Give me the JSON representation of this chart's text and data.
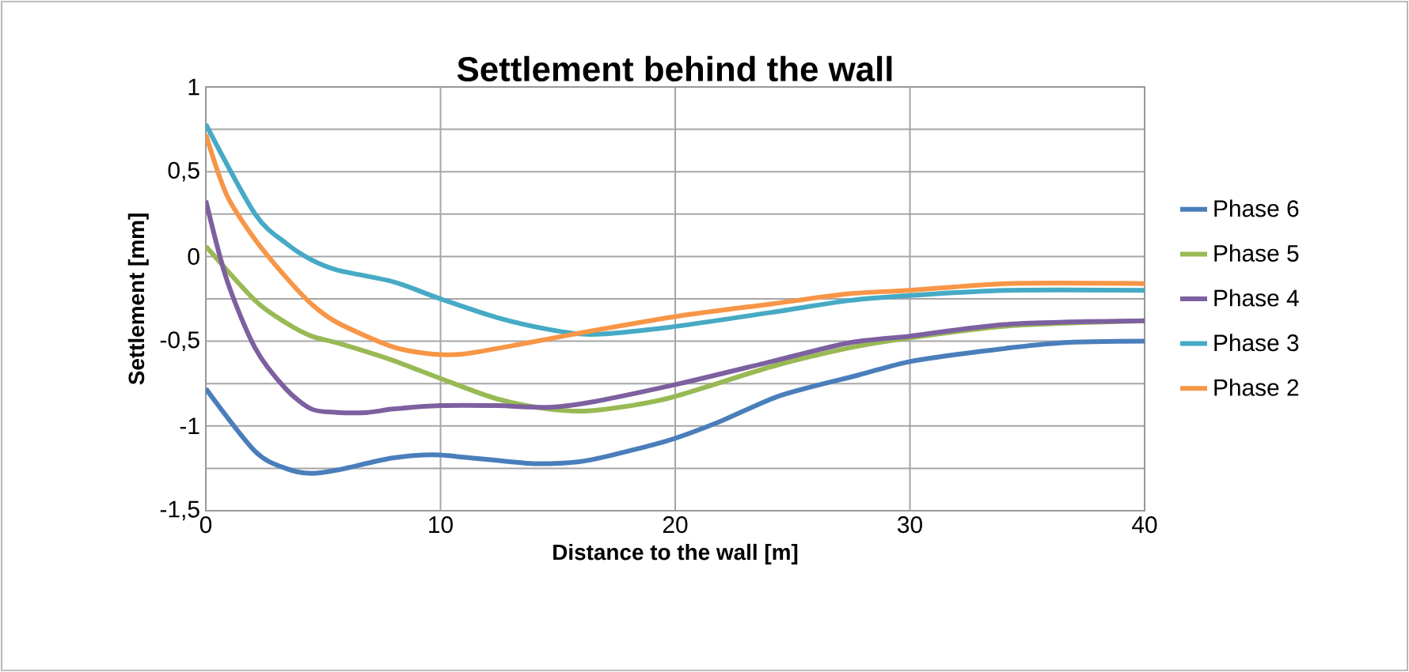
{
  "chart_data": {
    "type": "line",
    "title": "Settlement behind the wall",
    "xlabel": "Distance to the wall [m]",
    "ylabel": "Settlement [mm]",
    "xlim": [
      0,
      40
    ],
    "xticks": [
      0,
      10,
      20,
      30,
      40
    ],
    "ylim": [
      -1.5,
      1
    ],
    "yticks": [
      {
        "value": -1.5,
        "label": "-1,5"
      },
      {
        "value": -1.25,
        "label": null
      },
      {
        "value": -1,
        "label": "-1"
      },
      {
        "value": -0.75,
        "label": null
      },
      {
        "value": -0.5,
        "label": "-0,5"
      },
      {
        "value": -0.25,
        "label": null
      },
      {
        "value": 0,
        "label": "0"
      },
      {
        "value": 0.25,
        "label": null
      },
      {
        "value": 0.5,
        "label": "0,5"
      },
      {
        "value": 0.75,
        "label": null
      },
      {
        "value": 1,
        "label": "1"
      }
    ],
    "grid": true,
    "legend": "right",
    "marker": "none",
    "line_style": "solid",
    "series": [
      {
        "name": "Phase 6",
        "color": "#4a7ebb",
        "x": [
          0,
          2.1,
          3.4,
          4.5,
          5.6,
          7.9,
          9.6,
          10.7,
          13.7,
          15,
          16.4,
          19.6,
          21.8,
          24.5,
          27.8,
          30,
          33,
          36.4,
          40
        ],
        "values": [
          -0.78,
          -1.15,
          -1.25,
          -1.28,
          -1.26,
          -1.19,
          -1.17,
          -1.18,
          -1.22,
          -1.22,
          -1.2,
          -1.09,
          -0.98,
          -0.82,
          -0.7,
          -0.62,
          -0.56,
          -0.51,
          -0.5
        ]
      },
      {
        "name": "Phase 5",
        "color": "#98b954",
        "x": [
          0,
          2.1,
          3.4,
          4.5,
          5.6,
          7.9,
          10,
          12.4,
          14.6,
          16.4,
          19.6,
          24.1,
          27.4,
          30,
          34.2,
          40
        ],
        "values": [
          0.06,
          -0.26,
          -0.39,
          -0.47,
          -0.51,
          -0.61,
          -0.72,
          -0.84,
          -0.9,
          -0.91,
          -0.84,
          -0.65,
          -0.54,
          -0.48,
          -0.41,
          -0.38
        ]
      },
      {
        "name": "Phase 4",
        "color": "#7d60a0",
        "x": [
          0,
          0.9,
          2.1,
          3.4,
          4.5,
          5.6,
          6.9,
          8,
          10,
          12.4,
          14.6,
          16.4,
          20.2,
          24.1,
          27.4,
          30,
          34.2,
          40
        ],
        "values": [
          0.33,
          -0.14,
          -0.54,
          -0.78,
          -0.9,
          -0.92,
          -0.92,
          -0.9,
          -0.88,
          -0.88,
          -0.89,
          -0.86,
          -0.75,
          -0.62,
          -0.51,
          -0.47,
          -0.4,
          -0.38
        ]
      },
      {
        "name": "Phase 3",
        "color": "#46aac5",
        "x": [
          0,
          2.1,
          3.4,
          4.5,
          5.6,
          8,
          10,
          12.4,
          14.6,
          16.4,
          19.6,
          24.1,
          27.4,
          30,
          34.2,
          40
        ],
        "values": [
          0.78,
          0.25,
          0.08,
          -0.02,
          -0.08,
          -0.15,
          -0.25,
          -0.36,
          -0.43,
          -0.46,
          -0.42,
          -0.33,
          -0.26,
          -0.23,
          -0.2,
          -0.2
        ]
      },
      {
        "name": "Phase 2",
        "color": "#f79646",
        "x": [
          0,
          0.9,
          2.1,
          3.4,
          4.5,
          5.6,
          7.9,
          9.6,
          11,
          13.7,
          16.4,
          20.2,
          24.1,
          27.4,
          30,
          34.2,
          40
        ],
        "values": [
          0.72,
          0.36,
          0.1,
          -0.12,
          -0.28,
          -0.39,
          -0.53,
          -0.575,
          -0.575,
          -0.51,
          -0.44,
          -0.35,
          -0.28,
          -0.22,
          -0.2,
          -0.16,
          -0.16
        ]
      }
    ]
  }
}
